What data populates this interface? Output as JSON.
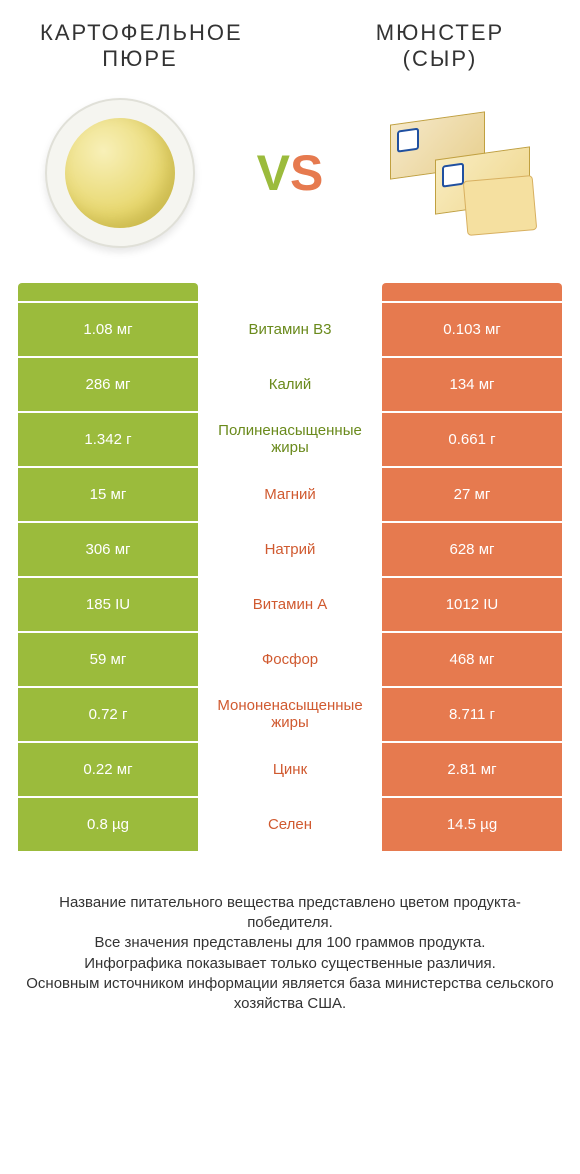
{
  "colors": {
    "left": "#9bbb3c",
    "right": "#e67a4f",
    "midLeftText": "#6a8a1c",
    "midRightText": "#d05a30"
  },
  "titles": {
    "left": "КАРТОФЕЛЬНОЕ ПЮРЕ",
    "right": "МЮНСТЕР (СЫР)"
  },
  "vs": {
    "v": "V",
    "s": "S"
  },
  "rows": [
    {
      "left": "1.08 мг",
      "mid": "Витамин B3",
      "right": "0.103 мг",
      "winner": "left"
    },
    {
      "left": "286 мг",
      "mid": "Калий",
      "right": "134 мг",
      "winner": "left"
    },
    {
      "left": "1.342 г",
      "mid": "Полиненасыщенные жиры",
      "right": "0.661 г",
      "winner": "left"
    },
    {
      "left": "15 мг",
      "mid": "Магний",
      "right": "27 мг",
      "winner": "right"
    },
    {
      "left": "306 мг",
      "mid": "Натрий",
      "right": "628 мг",
      "winner": "right"
    },
    {
      "left": "185 IU",
      "mid": "Витамин A",
      "right": "1012 IU",
      "winner": "right"
    },
    {
      "left": "59 мг",
      "mid": "Фосфор",
      "right": "468 мг",
      "winner": "right"
    },
    {
      "left": "0.72 г",
      "mid": "Мононенасыщенные жиры",
      "right": "8.711 г",
      "winner": "right"
    },
    {
      "left": "0.22 мг",
      "mid": "Цинк",
      "right": "2.81 мг",
      "winner": "right"
    },
    {
      "left": "0.8 µg",
      "mid": "Селен",
      "right": "14.5 µg",
      "winner": "right"
    }
  ],
  "footer": {
    "l1": "Название питательного вещества представлено цветом продукта-победителя.",
    "l2": "Все значения представлены для 100 граммов продукта.",
    "l3": "Инфографика показывает только существенные различия.",
    "l4": "Основным источником информации является база министерства сельского хозяйства США."
  }
}
